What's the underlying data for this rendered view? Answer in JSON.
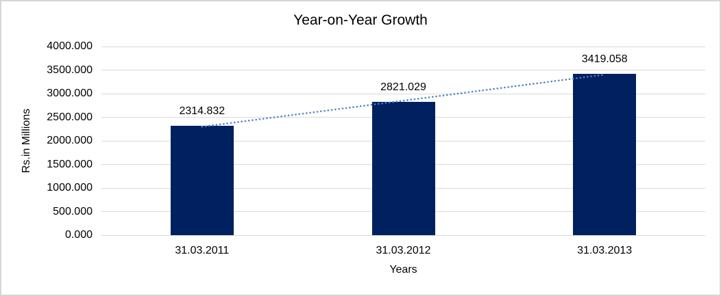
{
  "chart_data": {
    "type": "bar",
    "title": "Year-on-Year Growth",
    "xlabel": "Years",
    "ylabel": "Rs.in Millions",
    "categories": [
      "31.03.2011",
      "31.03.2012",
      "31.03.2013"
    ],
    "values": [
      2314.832,
      2821.029,
      3419.058
    ],
    "data_labels": [
      "2314.832",
      "2821.029",
      "3419.058"
    ],
    "y_ticks": [
      "4000.000",
      "3500.000",
      "3000.000",
      "2500.000",
      "2000.000",
      "1500.000",
      "1000.000",
      "500.000",
      "0.000"
    ],
    "ylim": [
      0,
      4000
    ],
    "y_step": 500,
    "grid": true,
    "legend_position": "none",
    "trendline": {
      "type": "linear",
      "style": "dotted"
    },
    "colors": {
      "bar": "#002060",
      "trendline": "#4f84c4",
      "gridline": "#d9d9d9",
      "text": "#000000",
      "frame_border": "#d6d6d6",
      "background": "#ffffff"
    }
  }
}
